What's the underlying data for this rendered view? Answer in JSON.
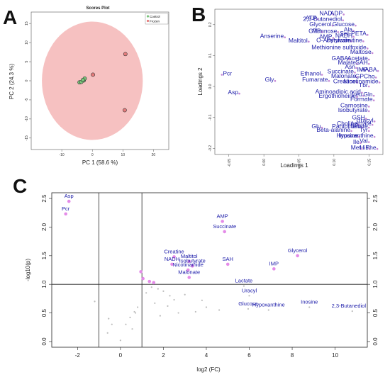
{
  "panels": [
    {
      "letter": "A"
    },
    {
      "letter": "B"
    },
    {
      "letter": "C"
    }
  ],
  "chart_data": [
    {
      "type": "scatter",
      "panel": "A",
      "title": "Scores Plot",
      "xlabel": "PC 1 (58.6 %)",
      "ylabel": "PC 2 (24.3 %)",
      "xlim": [
        -20,
        25
      ],
      "ylim": [
        -18,
        18
      ],
      "xticks": [
        -10,
        0,
        10,
        20
      ],
      "yticks": [
        -15,
        -10,
        -5,
        0,
        5,
        10,
        15
      ],
      "ellipse": {
        "center": [
          0,
          0
        ],
        "radii": [
          16.5,
          15.5
        ],
        "color": "#f4b6b6"
      },
      "legend": {
        "position": "top-right",
        "entries": [
          {
            "name": "Control",
            "color": "#79c47a"
          },
          {
            "name": "Frozen",
            "color": "#e47b7b"
          }
        ]
      },
      "series": [
        {
          "name": "Control",
          "color": "#79c47a",
          "points": [
            [
              -4.2,
              -0.4
            ],
            [
              -3.6,
              -0.3
            ],
            [
              -2.8,
              0.1
            ],
            [
              -2.5,
              0.6
            ],
            [
              -3.1,
              0.2
            ]
          ]
        },
        {
          "name": "Frozen",
          "color": "#e47b7b",
          "points": [
            [
              10.8,
              7.0
            ],
            [
              10.6,
              -7.7
            ],
            [
              0.2,
              1.6
            ]
          ]
        }
      ]
    },
    {
      "type": "scatter",
      "panel": "B",
      "xlabel": "Loadings 1",
      "ylabel": "Loadings 2",
      "xlim": [
        -0.07,
        0.17
      ],
      "ylim": [
        -0.22,
        0.25
      ],
      "xticks": [
        -0.05,
        0.0,
        0.05,
        0.1,
        0.15
      ],
      "xtick_labels": [
        "-0.05",
        "0.00",
        "0.05",
        "0.10",
        "0.15"
      ],
      "yticks": [
        -0.2,
        -0.1,
        0.0,
        0.1,
        0.2
      ],
      "ytick_labels": [
        "-0.2",
        "-0.1",
        "0.0",
        "0.1",
        "0.2"
      ],
      "point_color": "#c58ad6",
      "points": [
        {
          "label": "NAD",
          "x": 0.099,
          "y": 0.233
        },
        {
          "label": "ADP",
          "x": 0.114,
          "y": 0.233
        },
        {
          "label": "ATP",
          "x": 0.077,
          "y": 0.218
        },
        {
          "label": "2,3-Butanediol",
          "x": 0.113,
          "y": 0.214
        },
        {
          "label": "Glycerol",
          "x": 0.098,
          "y": 0.197
        },
        {
          "label": "Glucose",
          "x": 0.131,
          "y": 0.197
        },
        {
          "label": "GTP",
          "x": 0.083,
          "y": 0.176
        },
        {
          "label": "Mannose",
          "x": 0.106,
          "y": 0.176
        },
        {
          "label": "Ala",
          "x": 0.128,
          "y": 0.18
        },
        {
          "label": "Anserine",
          "x": 0.03,
          "y": 0.159
        },
        {
          "label": "AMP",
          "x": 0.099,
          "y": 0.157
        },
        {
          "label": "NADH",
          "x": 0.128,
          "y": 0.161
        },
        {
          "label": "Ser-PETA",
          "x": 0.148,
          "y": 0.167
        },
        {
          "label": "Maltitol",
          "x": 0.064,
          "y": 0.145
        },
        {
          "label": "Pyruvate",
          "x": 0.125,
          "y": 0.146
        },
        {
          "label": "O-Acetylcarnitine",
          "x": 0.142,
          "y": 0.146
        },
        {
          "label": "Methionine sulfoxide",
          "x": 0.148,
          "y": 0.123
        },
        {
          "label": "Maltose",
          "x": 0.155,
          "y": 0.108
        },
        {
          "label": "GABA",
          "x": 0.122,
          "y": 0.087
        },
        {
          "label": "Acetate",
          "x": 0.15,
          "y": 0.087
        },
        {
          "label": "Malate",
          "x": 0.133,
          "y": 0.073
        },
        {
          "label": "SAH",
          "x": 0.15,
          "y": 0.073
        },
        {
          "label": "Asn",
          "x": 0.132,
          "y": 0.06
        },
        {
          "label": "Pcr",
          "x": -0.06,
          "y": 0.038
        },
        {
          "label": "Gly",
          "x": 0.016,
          "y": 0.018
        },
        {
          "label": "Ethanol",
          "x": 0.083,
          "y": 0.038
        },
        {
          "label": "Succinate",
          "x": 0.13,
          "y": 0.045
        },
        {
          "label": "IMP",
          "x": 0.15,
          "y": 0.05
        },
        {
          "label": "AABA",
          "x": 0.163,
          "y": 0.05
        },
        {
          "label": "Fumarate",
          "x": 0.093,
          "y": 0.018
        },
        {
          "label": "Malonate",
          "x": 0.133,
          "y": 0.03
        },
        {
          "label": "GPCho",
          "x": 0.16,
          "y": 0.029
        },
        {
          "label": "Creatine",
          "x": 0.133,
          "y": 0.013
        },
        {
          "label": "Nicotinamide",
          "x": 0.165,
          "y": 0.013
        },
        {
          "label": "Asp",
          "x": -0.035,
          "y": -0.023
        },
        {
          "label": "Tbr",
          "x": 0.15,
          "y": 0.0
        },
        {
          "label": "Aminoadipic acid",
          "x": 0.14,
          "y": -0.02
        },
        {
          "label": "Leu",
          "x": 0.142,
          "y": -0.03
        },
        {
          "label": "Gln",
          "x": 0.157,
          "y": -0.03
        },
        {
          "label": "Ergothioneine",
          "x": 0.133,
          "y": -0.034
        },
        {
          "label": "Formate",
          "x": 0.157,
          "y": -0.045
        },
        {
          "label": "Carnosine",
          "x": 0.15,
          "y": -0.065
        },
        {
          "label": "Isobutyrate",
          "x": 0.15,
          "y": -0.08
        },
        {
          "label": "GSH",
          "x": 0.146,
          "y": -0.104
        },
        {
          "label": "Uracyl",
          "x": 0.158,
          "y": -0.113
        },
        {
          "label": "Choline",
          "x": 0.135,
          "y": -0.124
        },
        {
          "label": "Lactate",
          "x": 0.155,
          "y": -0.124
        },
        {
          "label": "Glu",
          "x": 0.083,
          "y": -0.133
        },
        {
          "label": "Leu",
          "x": 0.14,
          "y": -0.133
        },
        {
          "label": "Pantothenate",
          "x": 0.15,
          "y": -0.133
        },
        {
          "label": "Beta-alanine",
          "x": 0.125,
          "y": -0.144
        },
        {
          "label": "Tyr",
          "x": 0.15,
          "y": -0.144
        },
        {
          "label": "Inosine",
          "x": 0.136,
          "y": -0.163
        },
        {
          "label": "Hypoxanthine",
          "x": 0.158,
          "y": -0.163
        },
        {
          "label": "Ile",
          "x": 0.138,
          "y": -0.183
        },
        {
          "label": "Val",
          "x": 0.15,
          "y": -0.18
        },
        {
          "label": "Met",
          "x": 0.14,
          "y": -0.202
        },
        {
          "label": "His",
          "x": 0.151,
          "y": -0.202
        },
        {
          "label": "Phe",
          "x": 0.162,
          "y": -0.202
        }
      ]
    },
    {
      "type": "scatter",
      "panel": "C",
      "xlabel": "log2 (FC)",
      "ylabel": "-log10(p)",
      "xlim": [
        -3.2,
        11.5
      ],
      "ylim": [
        -0.1,
        2.6
      ],
      "xticks": [
        -2,
        0,
        2,
        4,
        6,
        8,
        10
      ],
      "yticks": [
        0.0,
        0.5,
        1.0,
        1.5,
        2.0,
        2.5
      ],
      "ytick_labels": [
        "0.0",
        "0.5",
        "1.0",
        "1.5",
        "2.0",
        "2.5"
      ],
      "vlines": [
        -1,
        1
      ],
      "hline": 1.0,
      "significant_color": "#e48be8",
      "nonsignificant_color": "#bdbdbd",
      "labeled_points": [
        {
          "label": "Asp",
          "x": -2.4,
          "y": 2.45,
          "sig": true
        },
        {
          "label": "Pcr",
          "x": -2.55,
          "y": 2.23,
          "sig": true
        },
        {
          "label": "AMP",
          "x": 4.75,
          "y": 2.1,
          "sig": true
        },
        {
          "label": "Succinate",
          "x": 4.85,
          "y": 1.92,
          "sig": true
        },
        {
          "label": "Creatine",
          "x": 2.5,
          "y": 1.48,
          "sig": true
        },
        {
          "label": "Maltitol",
          "x": 3.2,
          "y": 1.4,
          "sig": true
        },
        {
          "label": "NADH",
          "x": 2.4,
          "y": 1.35,
          "sig": true
        },
        {
          "label": "SAH",
          "x": 5.0,
          "y": 1.35,
          "sig": true
        },
        {
          "label": "Isobutyrate",
          "x": 3.35,
          "y": 1.32,
          "sig": true
        },
        {
          "label": "Nicotinamide",
          "x": 3.15,
          "y": 1.25,
          "sig": true
        },
        {
          "label": "Glycerol",
          "x": 8.25,
          "y": 1.5,
          "sig": true
        },
        {
          "label": "IMP",
          "x": 7.15,
          "y": 1.27,
          "sig": true
        },
        {
          "label": "Malonate",
          "x": 3.2,
          "y": 1.12,
          "sig": true
        },
        {
          "label": "Lactate",
          "x": 5.75,
          "y": 0.97,
          "sig": false
        },
        {
          "label": "Uracyl",
          "x": 6.0,
          "y": 0.8,
          "sig": false
        },
        {
          "label": "Glucose",
          "x": 5.95,
          "y": 0.57,
          "sig": false
        },
        {
          "label": "Inosine",
          "x": 8.8,
          "y": 0.6,
          "sig": false
        },
        {
          "label": "Hypoxanthine",
          "x": 6.9,
          "y": 0.55,
          "sig": false
        },
        {
          "label": "2,3-Butanediol",
          "x": 10.8,
          "y": 0.53,
          "sig": false
        }
      ],
      "unlabeled_points": [
        [
          0.95,
          1.22,
          1
        ],
        [
          1.05,
          1.1,
          1
        ],
        [
          1.35,
          1.05,
          1
        ],
        [
          1.55,
          1.03,
          1
        ],
        [
          -1.2,
          0.7,
          0
        ],
        [
          -0.55,
          0.4,
          0
        ],
        [
          -0.4,
          0.3,
          0
        ],
        [
          -0.6,
          0.15,
          0
        ],
        [
          0.0,
          0.02,
          0
        ],
        [
          0.45,
          0.42,
          0
        ],
        [
          0.7,
          0.5,
          0
        ],
        [
          0.8,
          0.6,
          0
        ],
        [
          0.25,
          0.3,
          0
        ],
        [
          0.55,
          0.22,
          0
        ],
        [
          0.65,
          0.52,
          0
        ],
        [
          1.2,
          0.85,
          0
        ],
        [
          1.45,
          0.95,
          0
        ],
        [
          1.75,
          0.92,
          0
        ],
        [
          2.0,
          0.88,
          0
        ],
        [
          2.3,
          0.8,
          0
        ],
        [
          2.5,
          0.73,
          0
        ],
        [
          2.2,
          0.62,
          0
        ],
        [
          3.0,
          0.82,
          0
        ],
        [
          3.8,
          0.72,
          0
        ],
        [
          4.0,
          0.6,
          0
        ],
        [
          4.6,
          0.55,
          0
        ],
        [
          3.5,
          0.52,
          0
        ],
        [
          2.7,
          0.5,
          0
        ],
        [
          1.6,
          0.67,
          0
        ],
        [
          1.85,
          0.45,
          0
        ]
      ]
    }
  ]
}
